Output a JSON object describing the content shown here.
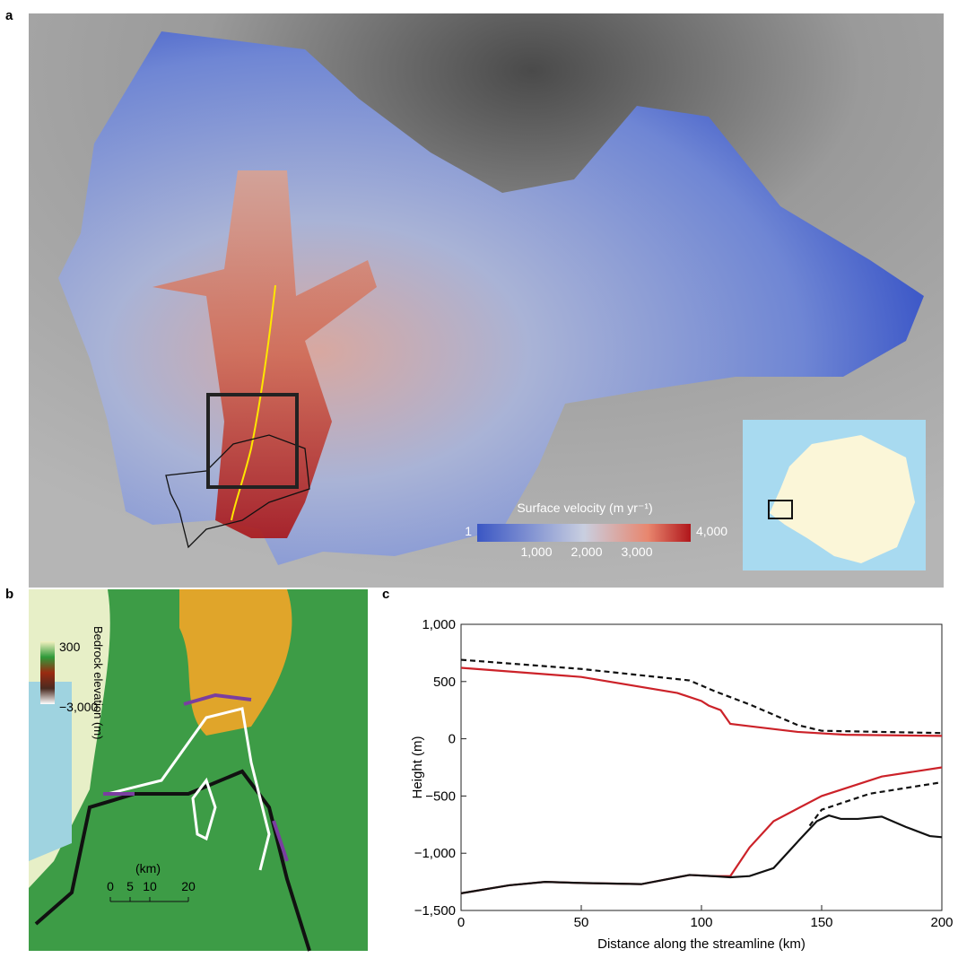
{
  "panels": {
    "a": {
      "label": "a",
      "colorbar": {
        "title": "Surface velocity (m yr⁻¹)",
        "min_label": "1",
        "max_label": "4,000",
        "tick_labels": [
          "1,000",
          "2,000",
          "3,000"
        ]
      }
    },
    "b": {
      "label": "b",
      "colorbar": {
        "top_label": "300",
        "title": "Bedrock elevation (m)",
        "bottom_label": "−3,000"
      },
      "scale": {
        "unit": "(km)",
        "tick_labels": [
          "0",
          "5",
          "10",
          "20"
        ]
      }
    },
    "c": {
      "label": "c"
    }
  },
  "chart_data": {
    "type": "line",
    "x_label": "Distance along the streamline (km)",
    "y_label": "Height (m)",
    "xlim": [
      0,
      200
    ],
    "xticks": [
      0,
      50,
      100,
      150,
      200
    ],
    "ylim": [
      -1500,
      1000
    ],
    "yticks": [
      {
        "value": -1500,
        "label": "−1,500"
      },
      {
        "value": -1000,
        "label": "−1,000"
      },
      {
        "value": -500,
        "label": "−500"
      },
      0,
      500,
      {
        "value": 1000,
        "label": "1,000"
      }
    ],
    "series": [
      {
        "color": "#cc2229",
        "dashed": false,
        "x": [
          0,
          50,
          90,
          100,
          103,
          108,
          112,
          120,
          140,
          160,
          200
        ],
        "values": [
          620,
          540,
          400,
          330,
          290,
          250,
          130,
          110,
          60,
          35,
          25
        ]
      },
      {
        "color": "#111111",
        "dashed": true,
        "x": [
          0,
          50,
          95,
          105,
          120,
          140,
          150,
          200
        ],
        "values": [
          690,
          610,
          510,
          420,
          300,
          120,
          70,
          50
        ]
      },
      {
        "color": "#cc2229",
        "dashed": false,
        "x": [
          0,
          20,
          35,
          50,
          75,
          95,
          105,
          112,
          120,
          130,
          150,
          175,
          200
        ],
        "values": [
          -1350,
          -1280,
          -1250,
          -1260,
          -1270,
          -1190,
          -1200,
          -1200,
          -950,
          -720,
          -500,
          -330,
          -250
        ]
      },
      {
        "color": "#111111",
        "dashed": true,
        "x": [
          145,
          150,
          170,
          200
        ],
        "values": [
          -760,
          -620,
          -480,
          -380
        ]
      },
      {
        "color": "#111111",
        "dashed": false,
        "x": [
          0,
          20,
          35,
          50,
          75,
          95,
          105,
          112,
          120,
          130,
          140,
          148,
          153,
          158,
          165,
          175,
          185,
          195,
          200
        ],
        "values": [
          -1350,
          -1280,
          -1250,
          -1260,
          -1270,
          -1190,
          -1200,
          -1210,
          -1200,
          -1130,
          -900,
          -720,
          -670,
          -700,
          -700,
          -680,
          -770,
          -850,
          -860
        ]
      }
    ]
  }
}
